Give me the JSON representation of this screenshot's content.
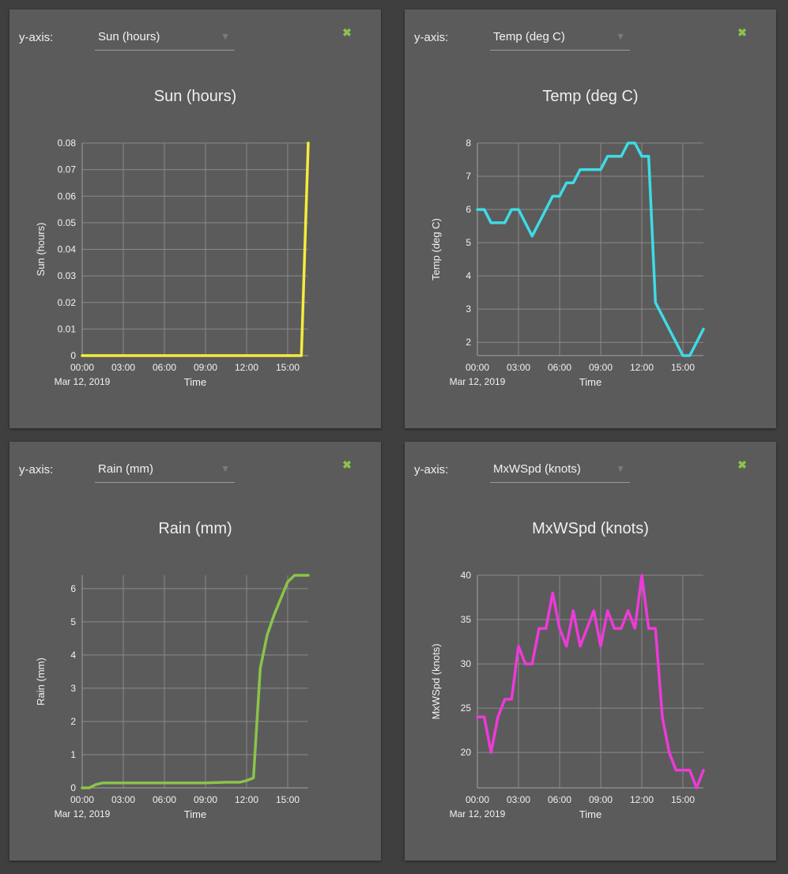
{
  "panels": [
    {
      "yaxis_label": "y-axis:",
      "selected": "Sun (hours)",
      "close_icon": "close-icon",
      "title": "Sun (hours)"
    },
    {
      "yaxis_label": "y-axis:",
      "selected": "Temp (deg C)",
      "close_icon": "close-icon",
      "title": "Temp (deg C)"
    },
    {
      "yaxis_label": "y-axis:",
      "selected": "Rain (mm)",
      "close_icon": "close-icon",
      "title": "Rain (mm)"
    },
    {
      "yaxis_label": "y-axis:",
      "selected": "MxWSpd (knots)",
      "close_icon": "close-icon",
      "title": "MxWSpd (knots)"
    }
  ],
  "chart_data": [
    {
      "type": "line",
      "title": "Sun (hours)",
      "xlabel": "Time",
      "ylabel": "Sun (hours)",
      "date_label": "Mar 12, 2019",
      "x_ticks": [
        "00:00",
        "03:00",
        "06:00",
        "09:00",
        "12:00",
        "15:00"
      ],
      "xlim": [
        0,
        16.5
      ],
      "ylim": [
        0,
        0.08
      ],
      "y_ticks": [
        "0",
        "0.01",
        "0.02",
        "0.03",
        "0.04",
        "0.05",
        "0.06",
        "0.07",
        "0.08"
      ],
      "grid": true,
      "color": "#f5ec3c",
      "x": [
        0,
        0.5,
        1,
        2,
        4,
        6,
        8,
        10,
        12,
        14,
        15.5,
        16,
        16.5
      ],
      "y": [
        0,
        0,
        0,
        0,
        0,
        0,
        0,
        0,
        0,
        0,
        0,
        0,
        0.08
      ]
    },
    {
      "type": "line",
      "title": "Temp (deg C)",
      "xlabel": "Time",
      "ylabel": "Temp (deg C)",
      "date_label": "Mar 12, 2019",
      "x_ticks": [
        "00:00",
        "03:00",
        "06:00",
        "09:00",
        "12:00",
        "15:00"
      ],
      "xlim": [
        0,
        16.5
      ],
      "ylim": [
        1.6,
        8
      ],
      "y_ticks": [
        "2",
        "3",
        "4",
        "5",
        "6",
        "7",
        "8"
      ],
      "grid": true,
      "color": "#3ddbe6",
      "x": [
        0,
        0.5,
        1,
        2,
        2.5,
        3,
        4,
        5,
        5.5,
        6,
        6.5,
        7,
        7.5,
        8,
        8.5,
        9,
        9.5,
        10,
        10.5,
        11,
        11.5,
        12,
        12.5,
        13,
        15,
        15.5,
        16.5
      ],
      "y": [
        6,
        6,
        5.6,
        5.6,
        6,
        6,
        5.2,
        6,
        6.4,
        6.4,
        6.8,
        6.8,
        7.2,
        7.2,
        7.2,
        7.2,
        7.6,
        7.6,
        7.6,
        8,
        8,
        7.6,
        7.6,
        3.2,
        1.6,
        1.6,
        2.4
      ]
    },
    {
      "type": "line",
      "title": "Rain (mm)",
      "xlabel": "Time",
      "ylabel": "Rain (mm)",
      "date_label": "Mar 12, 2019",
      "x_ticks": [
        "00:00",
        "03:00",
        "06:00",
        "09:00",
        "12:00",
        "15:00"
      ],
      "xlim": [
        0,
        16.5
      ],
      "ylim": [
        0,
        6.4
      ],
      "y_ticks": [
        "0",
        "1",
        "2",
        "3",
        "4",
        "5",
        "6"
      ],
      "grid": true,
      "color": "#8bc34a",
      "x": [
        0,
        0.5,
        1,
        1.5,
        3,
        6,
        9,
        10.5,
        11.5,
        12,
        12.5,
        13,
        13.5,
        14,
        14.5,
        15,
        15.5,
        16,
        16.5
      ],
      "y": [
        0,
        0,
        0.1,
        0.15,
        0.15,
        0.15,
        0.15,
        0.17,
        0.17,
        0.22,
        0.3,
        3.6,
        4.6,
        5.2,
        5.7,
        6.2,
        6.4,
        6.4,
        6.4
      ]
    },
    {
      "type": "line",
      "title": "MxWSpd (knots)",
      "xlabel": "Time",
      "ylabel": "MxWSpd (knots)",
      "date_label": "Mar 12, 2019",
      "x_ticks": [
        "00:00",
        "03:00",
        "06:00",
        "09:00",
        "12:00",
        "15:00"
      ],
      "xlim": [
        0,
        16.5
      ],
      "ylim": [
        16,
        40
      ],
      "y_ticks": [
        "20",
        "25",
        "30",
        "35",
        "40"
      ],
      "grid": true,
      "color": "#ee3ad8",
      "x": [
        0,
        0.5,
        1,
        1.5,
        2,
        2.5,
        3,
        3.5,
        4,
        4.5,
        5,
        5.5,
        6,
        6.5,
        7,
        7.5,
        8,
        8.5,
        9,
        9.5,
        10,
        10.5,
        11,
        11.5,
        12,
        12.5,
        13,
        13.5,
        14,
        14.5,
        15,
        15.5,
        16,
        16.5
      ],
      "y": [
        24,
        24,
        20,
        24,
        26,
        26,
        32,
        30,
        30,
        34,
        34,
        38,
        34,
        32,
        36,
        32,
        34,
        36,
        32,
        36,
        34,
        34,
        36,
        34,
        40,
        34,
        34,
        24,
        20,
        18,
        18,
        18,
        16,
        18
      ]
    }
  ]
}
